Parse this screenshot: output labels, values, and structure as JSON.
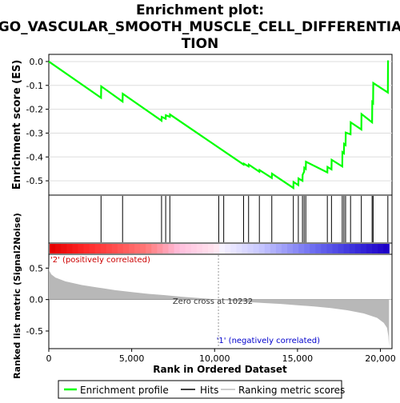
{
  "chart_data": {
    "type": "line",
    "title_lines": [
      "Enrichment plot:",
      "GO_VASCULAR_SMOOTH_MUSCLE_CELL_DIFFERENTIA",
      "TION"
    ],
    "es_panel": {
      "ylabel": "Enrichment score (ES)",
      "ylim": [
        -0.56,
        0.03
      ],
      "yticks": [
        0.0,
        -0.1,
        -0.2,
        -0.3,
        -0.4,
        -0.5
      ],
      "ytick_labels": [
        "0.0",
        "-0.1",
        "-0.2",
        "-0.3",
        "-0.4",
        "-0.5"
      ],
      "line_color": "#00ff00",
      "profile": [
        [
          0,
          0.0
        ],
        [
          3150,
          -0.152
        ],
        [
          3160,
          -0.104
        ],
        [
          4450,
          -0.168
        ],
        [
          4460,
          -0.135
        ],
        [
          6800,
          -0.248
        ],
        [
          6810,
          -0.232
        ],
        [
          7050,
          -0.24
        ],
        [
          7060,
          -0.225
        ],
        [
          7300,
          -0.232
        ],
        [
          7310,
          -0.222
        ],
        [
          11750,
          -0.432
        ],
        [
          11760,
          -0.428
        ],
        [
          12050,
          -0.44
        ],
        [
          12060,
          -0.432
        ],
        [
          12700,
          -0.462
        ],
        [
          12710,
          -0.455
        ],
        [
          13450,
          -0.488
        ],
        [
          13460,
          -0.47
        ],
        [
          14750,
          -0.53
        ],
        [
          14760,
          -0.505
        ],
        [
          15050,
          -0.518
        ],
        [
          15060,
          -0.49
        ],
        [
          15300,
          -0.5
        ],
        [
          15310,
          -0.475
        ],
        [
          15400,
          -0.462
        ],
        [
          15410,
          -0.445
        ],
        [
          15500,
          -0.45
        ],
        [
          15510,
          -0.42
        ],
        [
          16800,
          -0.465
        ],
        [
          16810,
          -0.442
        ],
        [
          17050,
          -0.452
        ],
        [
          17060,
          -0.412
        ],
        [
          17700,
          -0.44
        ],
        [
          17710,
          -0.38
        ],
        [
          17800,
          -0.385
        ],
        [
          17810,
          -0.345
        ],
        [
          17900,
          -0.35
        ],
        [
          17910,
          -0.298
        ],
        [
          18200,
          -0.305
        ],
        [
          18210,
          -0.255
        ],
        [
          18850,
          -0.285
        ],
        [
          18860,
          -0.22
        ],
        [
          19500,
          -0.255
        ],
        [
          19510,
          -0.17
        ],
        [
          19560,
          -0.174
        ],
        [
          19570,
          -0.09
        ],
        [
          20450,
          -0.13
        ],
        [
          20460,
          0.005
        ]
      ]
    },
    "hits_panel": {
      "hits": [
        3150,
        4450,
        6800,
        7050,
        7300,
        10250,
        10550,
        11750,
        12050,
        12700,
        13450,
        14750,
        15050,
        15300,
        15400,
        15500,
        16800,
        17050,
        17700,
        17800,
        17900,
        18200,
        18850,
        19500,
        19560,
        20450
      ]
    },
    "metric_panel": {
      "ylabel": "Ranked list metric (Signal2Noise)",
      "ylim": [
        -0.78,
        0.72
      ],
      "yticks": [
        0.5,
        0.0,
        -0.5
      ],
      "ytick_labels": [
        "0.5",
        "0.0",
        "-0.5"
      ],
      "xlabel": "Rank in Ordered Dataset",
      "xlim": [
        0,
        20700
      ],
      "xticks": [
        0,
        5000,
        10000,
        15000,
        20000
      ],
      "xtick_labels": [
        "0",
        "5,000",
        "10,000",
        "15,000",
        "20,000"
      ],
      "zero_cross": 10232,
      "zero_cross_label": "Zero cross at 10232",
      "pos_label": "'2' (positively correlated)",
      "neg_label": "'1' (negatively correlated)",
      "metric_curve": [
        [
          0,
          0.55
        ],
        [
          30,
          0.46
        ],
        [
          150,
          0.4
        ],
        [
          400,
          0.35
        ],
        [
          1000,
          0.29
        ],
        [
          2000,
          0.23
        ],
        [
          3000,
          0.19
        ],
        [
          4000,
          0.15
        ],
        [
          5000,
          0.12
        ],
        [
          6000,
          0.09
        ],
        [
          7000,
          0.07
        ],
        [
          8000,
          0.045
        ],
        [
          9000,
          0.025
        ],
        [
          10232,
          0.0
        ],
        [
          11000,
          -0.02
        ],
        [
          12000,
          -0.04
        ],
        [
          13000,
          -0.055
        ],
        [
          14000,
          -0.07
        ],
        [
          15000,
          -0.09
        ],
        [
          16000,
          -0.11
        ],
        [
          17000,
          -0.135
        ],
        [
          18000,
          -0.17
        ],
        [
          19000,
          -0.22
        ],
        [
          19800,
          -0.29
        ],
        [
          20200,
          -0.37
        ],
        [
          20400,
          -0.45
        ],
        [
          20480,
          -0.58
        ],
        [
          20520,
          -0.74
        ]
      ]
    },
    "legend": {
      "placement": "bottom",
      "items": [
        "Enrichment profile",
        "Hits",
        "Ranking metric scores"
      ]
    }
  }
}
